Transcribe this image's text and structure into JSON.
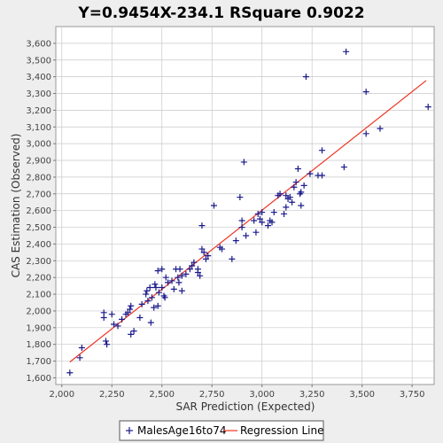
{
  "chart_data": {
    "type": "scatter",
    "title": "Y=0.9454X-234.1    RSquare 0.9022",
    "xlabel": "SAR Prediction (Expected)",
    "ylabel": "CAS Estimation (Observed)",
    "xlim": [
      1970,
      3860
    ],
    "ylim": [
      1560,
      3700
    ],
    "x_ticks": [
      2000,
      2250,
      2500,
      2750,
      3000,
      3250,
      3500,
      3750
    ],
    "y_ticks": [
      1600,
      1700,
      1800,
      1900,
      2000,
      2100,
      2200,
      2300,
      2400,
      2500,
      2600,
      2700,
      2800,
      2900,
      3000,
      3100,
      3200,
      3300,
      3400,
      3500,
      3600
    ],
    "grid": true,
    "legend_position": "bottom",
    "colors": {
      "points": "#1a1a8c",
      "line": "#ee3322",
      "plot_bg": "#ffffff",
      "grid": "#c8c8c8"
    },
    "series": [
      {
        "name": "MalesAge16to74",
        "type": "scatter",
        "points": [
          [
            2040,
            1630
          ],
          [
            2090,
            1720
          ],
          [
            2100,
            1780
          ],
          [
            2210,
            1960
          ],
          [
            2210,
            1990
          ],
          [
            2220,
            1820
          ],
          [
            2225,
            1800
          ],
          [
            2250,
            1980
          ],
          [
            2260,
            1920
          ],
          [
            2280,
            1910
          ],
          [
            2300,
            1950
          ],
          [
            2320,
            1980
          ],
          [
            2330,
            1990
          ],
          [
            2340,
            2010
          ],
          [
            2345,
            2030
          ],
          [
            2345,
            1860
          ],
          [
            2360,
            1880
          ],
          [
            2390,
            1960
          ],
          [
            2400,
            2040
          ],
          [
            2420,
            2100
          ],
          [
            2425,
            2120
          ],
          [
            2430,
            2060
          ],
          [
            2440,
            2140
          ],
          [
            2445,
            1930
          ],
          [
            2450,
            2080
          ],
          [
            2460,
            2020
          ],
          [
            2465,
            2160
          ],
          [
            2470,
            2140
          ],
          [
            2480,
            2030
          ],
          [
            2485,
            2110
          ],
          [
            2480,
            2240
          ],
          [
            2500,
            2140
          ],
          [
            2500,
            2250
          ],
          [
            2510,
            2090
          ],
          [
            2515,
            2080
          ],
          [
            2520,
            2200
          ],
          [
            2530,
            2170
          ],
          [
            2550,
            2180
          ],
          [
            2560,
            2130
          ],
          [
            2570,
            2250
          ],
          [
            2580,
            2200
          ],
          [
            2585,
            2170
          ],
          [
            2590,
            2250
          ],
          [
            2600,
            2120
          ],
          [
            2600,
            2210
          ],
          [
            2620,
            2220
          ],
          [
            2640,
            2250
          ],
          [
            2650,
            2270
          ],
          [
            2660,
            2290
          ],
          [
            2680,
            2250
          ],
          [
            2680,
            2230
          ],
          [
            2690,
            2210
          ],
          [
            2700,
            2510
          ],
          [
            2700,
            2370
          ],
          [
            2710,
            2350
          ],
          [
            2720,
            2310
          ],
          [
            2730,
            2330
          ],
          [
            2760,
            2630
          ],
          [
            2790,
            2380
          ],
          [
            2800,
            2370
          ],
          [
            2850,
            2310
          ],
          [
            2870,
            2420
          ],
          [
            2890,
            2680
          ],
          [
            2900,
            2540
          ],
          [
            2900,
            2500
          ],
          [
            2910,
            2890
          ],
          [
            2920,
            2450
          ],
          [
            2960,
            2540
          ],
          [
            2970,
            2470
          ],
          [
            2980,
            2580
          ],
          [
            2990,
            2550
          ],
          [
            3000,
            2530
          ],
          [
            3000,
            2590
          ],
          [
            3030,
            2510
          ],
          [
            3040,
            2540
          ],
          [
            3050,
            2530
          ],
          [
            3060,
            2590
          ],
          [
            3080,
            2690
          ],
          [
            3090,
            2700
          ],
          [
            3110,
            2580
          ],
          [
            3120,
            2620
          ],
          [
            3120,
            2690
          ],
          [
            3130,
            2670
          ],
          [
            3140,
            2680
          ],
          [
            3150,
            2650
          ],
          [
            3160,
            2740
          ],
          [
            3170,
            2770
          ],
          [
            3180,
            2850
          ],
          [
            3190,
            2700
          ],
          [
            3195,
            2630
          ],
          [
            3195,
            2710
          ],
          [
            3210,
            2750
          ],
          [
            3220,
            3400
          ],
          [
            3240,
            2820
          ],
          [
            3280,
            2810
          ],
          [
            3300,
            2810
          ],
          [
            3300,
            2960
          ],
          [
            3410,
            2860
          ],
          [
            3420,
            3550
          ],
          [
            3520,
            3060
          ],
          [
            3520,
            3310
          ],
          [
            3590,
            3090
          ],
          [
            3830,
            3220
          ]
        ]
      },
      {
        "name": "Regression Line",
        "type": "line",
        "slope": 0.9454,
        "intercept": -234.1,
        "x_range": [
          2040,
          3820
        ]
      }
    ]
  }
}
